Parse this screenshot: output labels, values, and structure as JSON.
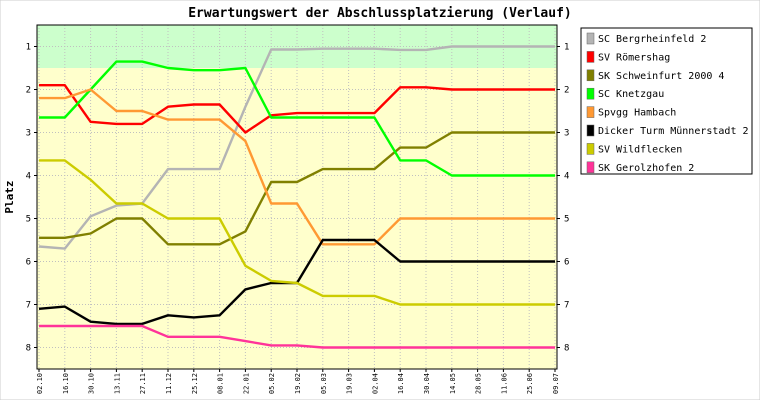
{
  "chart_data": {
    "type": "line",
    "title": "Erwartungswert der Abschlussplatzierung (Verlauf)",
    "ylabel": "Platz",
    "xlabel": "",
    "ylim": [
      0.5,
      8.5
    ],
    "y_inverted": true,
    "yticks": [
      1,
      2,
      3,
      4,
      5,
      6,
      7,
      8
    ],
    "ytick_labels": [
      "1",
      "2",
      "3",
      "4",
      "5",
      "6",
      "7",
      "8"
    ],
    "x": [
      "02.10",
      "16.10",
      "30.10",
      "13.11",
      "27.11",
      "11.12",
      "25.12",
      "08.01",
      "22.01",
      "05.02",
      "19.02",
      "05.03",
      "19.03",
      "02.04",
      "16.04",
      "30.04",
      "14.05",
      "28.05",
      "11.06",
      "25.06",
      "09.07"
    ],
    "zones": [
      {
        "from": 0.5,
        "to": 1.5,
        "color": "#ccffcc"
      },
      {
        "from": 1.5,
        "to": 8.5,
        "color": "#ffffcc"
      }
    ],
    "grid": true,
    "legend_position": "right",
    "series": [
      {
        "name": "SC Bergrheinfeld 2",
        "color": "#b4b4b4",
        "values": [
          5.65,
          5.7,
          4.95,
          4.7,
          4.65,
          3.85,
          3.85,
          3.85,
          2.4,
          1.07,
          1.07,
          1.05,
          1.05,
          1.05,
          1.08,
          1.08,
          1.0,
          1.0,
          1.0,
          1.0,
          1.0
        ]
      },
      {
        "name": "SV Römershag",
        "color": "#ff0000",
        "values": [
          1.9,
          1.9,
          2.75,
          2.8,
          2.8,
          2.4,
          2.35,
          2.35,
          3.0,
          2.6,
          2.55,
          2.55,
          2.55,
          2.55,
          1.95,
          1.95,
          2.0,
          2.0,
          2.0,
          2.0,
          2.0
        ]
      },
      {
        "name": "SK Schweinfurt 2000 4",
        "color": "#808000",
        "values": [
          5.45,
          5.45,
          5.35,
          5.0,
          5.0,
          5.6,
          5.6,
          5.6,
          5.3,
          4.15,
          4.15,
          3.85,
          3.85,
          3.85,
          3.35,
          3.35,
          3.0,
          3.0,
          3.0,
          3.0,
          3.0
        ]
      },
      {
        "name": "SC Knetzgau",
        "color": "#00ff00",
        "values": [
          2.65,
          2.65,
          2.0,
          1.35,
          1.35,
          1.5,
          1.55,
          1.55,
          1.5,
          2.65,
          2.65,
          2.65,
          2.65,
          2.65,
          3.65,
          3.65,
          4.0,
          4.0,
          4.0,
          4.0,
          4.0
        ]
      },
      {
        "name": "Spvgg Hambach",
        "color": "#ff9933",
        "values": [
          2.2,
          2.2,
          2.0,
          2.5,
          2.5,
          2.7,
          2.7,
          2.7,
          3.2,
          4.65,
          4.65,
          5.6,
          5.6,
          5.6,
          5.0,
          5.0,
          5.0,
          5.0,
          5.0,
          5.0,
          5.0
        ]
      },
      {
        "name": "Dicker Turm Münnerstadt 2",
        "color": "#000000",
        "values": [
          7.1,
          7.05,
          7.4,
          7.45,
          7.45,
          7.25,
          7.3,
          7.25,
          6.65,
          6.5,
          6.5,
          5.5,
          5.5,
          5.5,
          6.0,
          6.0,
          6.0,
          6.0,
          6.0,
          6.0,
          6.0
        ]
      },
      {
        "name": "SV Wildflecken",
        "color": "#cccc00",
        "values": [
          3.65,
          3.65,
          4.1,
          4.65,
          4.65,
          5.0,
          5.0,
          5.0,
          6.1,
          6.45,
          6.5,
          6.8,
          6.8,
          6.8,
          7.0,
          7.0,
          7.0,
          7.0,
          7.0,
          7.0,
          7.0
        ]
      },
      {
        "name": "SK Gerolzhofen 2",
        "color": "#ff3399",
        "values": [
          7.5,
          7.5,
          7.5,
          7.5,
          7.5,
          7.75,
          7.75,
          7.75,
          7.85,
          7.95,
          7.95,
          8.0,
          8.0,
          8.0,
          8.0,
          8.0,
          8.0,
          8.0,
          8.0,
          8.0,
          8.0
        ]
      }
    ]
  }
}
